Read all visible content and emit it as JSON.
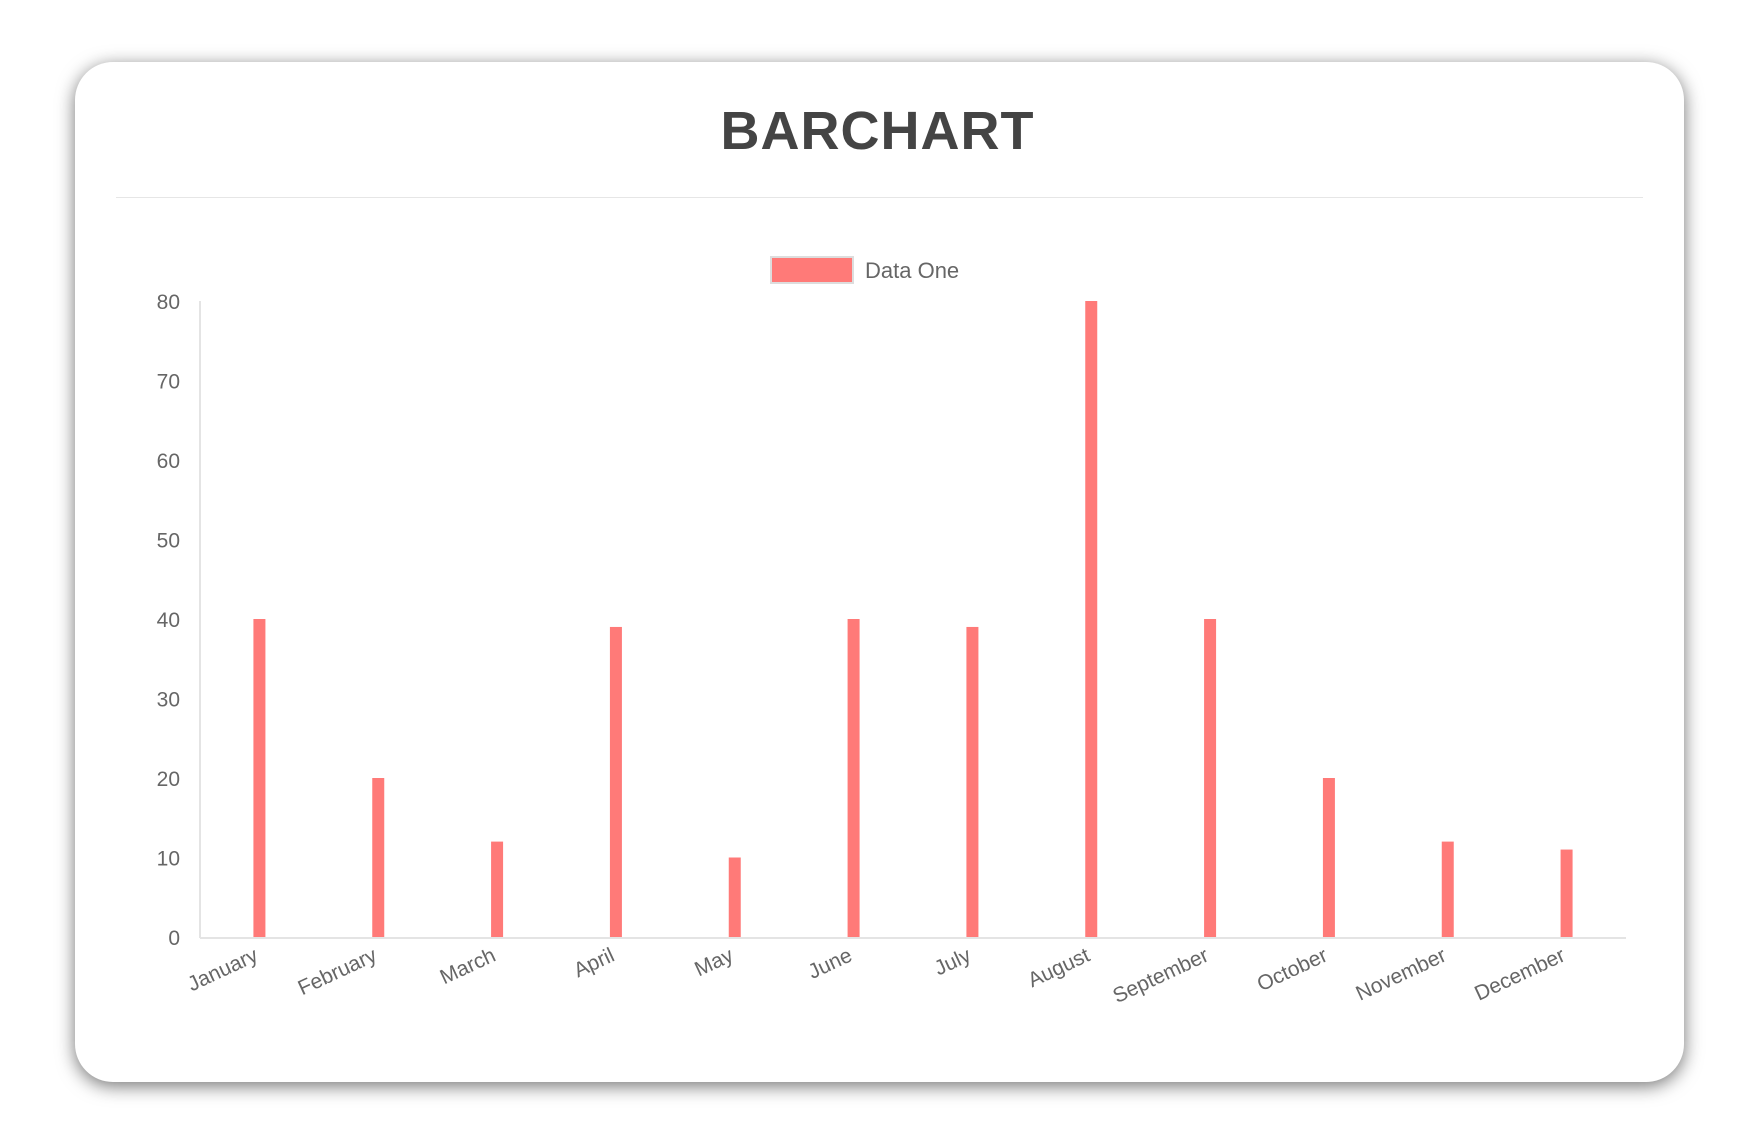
{
  "title": "BARCHART",
  "chart_data": {
    "type": "bar",
    "title": "",
    "categories": [
      "January",
      "February",
      "March",
      "April",
      "May",
      "June",
      "July",
      "August",
      "September",
      "October",
      "November",
      "December"
    ],
    "series": [
      {
        "name": "Data One",
        "values": [
          40,
          20,
          12,
          39,
          10,
          40,
          39,
          80,
          40,
          20,
          12,
          11
        ],
        "color": "#ff7a78"
      }
    ],
    "ylim": [
      0,
      80
    ],
    "yticks": [
      0,
      10,
      20,
      30,
      40,
      50,
      60,
      70,
      80
    ],
    "grid": false,
    "legend": "top-center",
    "xlabel": "",
    "ylabel": ""
  }
}
